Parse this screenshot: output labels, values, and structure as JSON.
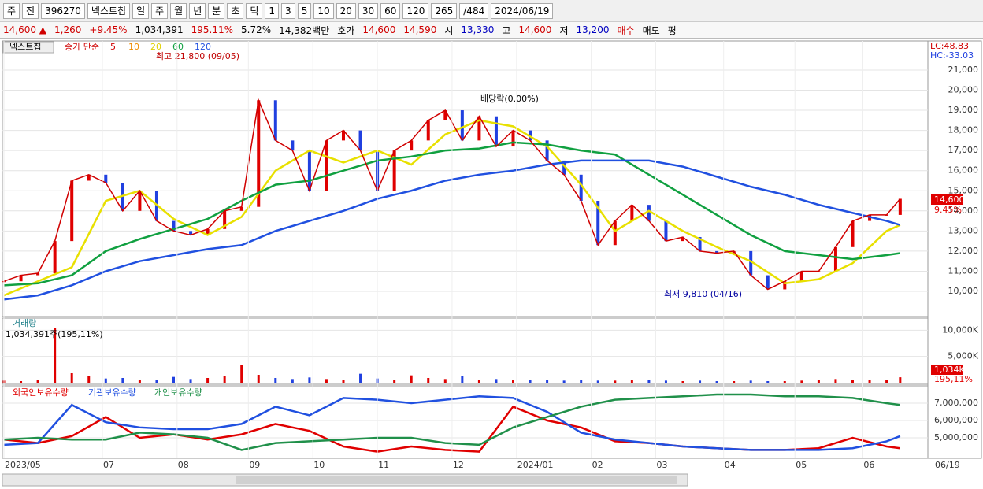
{
  "toolbar": [
    "주",
    "전",
    "396270",
    "넥스트칩",
    "일",
    "주",
    "월",
    "년",
    "분",
    "초",
    "틱",
    "1",
    "3",
    "5",
    "10",
    "20",
    "30",
    "60",
    "120",
    "265",
    "/484",
    "2024/06/19"
  ],
  "infobar": [
    {
      "text": "14,600 ▲",
      "color": "#d00000"
    },
    {
      "text": "1,260",
      "color": "#d00000"
    },
    {
      "text": "+9.45%",
      "color": "#d00000"
    },
    {
      "text": "1,034,391",
      "color": "#000000"
    },
    {
      "text": "195.11%",
      "color": "#d00000"
    },
    {
      "text": "5.72%",
      "color": "#000000"
    },
    {
      "text": "14,382백만",
      "color": "#000000"
    },
    {
      "text": "호가",
      "color": "#000000"
    },
    {
      "text": "14,600",
      "color": "#d00000"
    },
    {
      "text": "14,590",
      "color": "#d00000"
    },
    {
      "text": "시",
      "color": "#000000"
    },
    {
      "text": "13,330",
      "color": "#0000c0"
    },
    {
      "text": "고",
      "color": "#000000"
    },
    {
      "text": "14,600",
      "color": "#d00000"
    },
    {
      "text": "저",
      "color": "#000000"
    },
    {
      "text": "13,200",
      "color": "#0000c0"
    },
    {
      "text": "매수",
      "color": "#d00000"
    },
    {
      "text": "매도",
      "color": "#000000"
    },
    {
      "text": "평",
      "color": "#000000"
    }
  ],
  "price": {
    "name": "넥스트칩",
    "legend_prefix": "종가 단순",
    "ma_labels": [
      {
        "text": "5",
        "color": "#d00000"
      },
      {
        "text": "10",
        "color": "#f08c00"
      },
      {
        "text": "20",
        "color": "#e0d000"
      },
      {
        "text": "60",
        "color": "#10a040"
      },
      {
        "text": "120",
        "color": "#2050e0"
      }
    ],
    "high_note": "최고 21,800 (09/05)",
    "dividend_note": "배당락(0.00%)",
    "low_note": "최저 9,810 (04/16)",
    "lc": "LC:48.83",
    "hc": "HC:-33.03",
    "last_label": "14,600",
    "last_pct": "9.45%",
    "ylim": [
      8826,
      22446
    ],
    "yticks": [
      {
        "value": 10000,
        "label": "10,000"
      },
      {
        "value": 11000,
        "label": "11,000"
      },
      {
        "value": 12000,
        "label": "12,000"
      },
      {
        "value": 13000,
        "label": "13,000"
      },
      {
        "value": 14000,
        "label": "14,000"
      },
      {
        "value": 15000,
        "label": "15,000"
      },
      {
        "value": 16000,
        "label": "16,000"
      },
      {
        "value": 17000,
        "label": "17,000"
      },
      {
        "value": 18000,
        "label": "18,000"
      },
      {
        "value": 19000,
        "label": "19,000"
      },
      {
        "value": 20000,
        "label": "20,000"
      },
      {
        "value": 21000,
        "label": "21,000"
      }
    ],
    "x": [
      0,
      5,
      10,
      15,
      20,
      25,
      30,
      35,
      40,
      45,
      50,
      55,
      60,
      65,
      70,
      75,
      80,
      85,
      90,
      95,
      100,
      105,
      110,
      115,
      120,
      125,
      130,
      135,
      140,
      145,
      150,
      155,
      160,
      165,
      170,
      175,
      180,
      185,
      190,
      195,
      200,
      205,
      210,
      215,
      220,
      225,
      230,
      235,
      240,
      245,
      250,
      255,
      260,
      264
    ],
    "close": [
      10500,
      10800,
      10900,
      12500,
      15500,
      15800,
      15400,
      14000,
      15000,
      13500,
      13000,
      12800,
      13100,
      14000,
      14200,
      19500,
      17500,
      17000,
      15000,
      17500,
      18000,
      17000,
      15000,
      17000,
      17500,
      18500,
      19000,
      17500,
      18700,
      17200,
      18000,
      17500,
      16500,
      15800,
      14500,
      12300,
      13500,
      14300,
      13500,
      12500,
      12700,
      12000,
      11900,
      12000,
      10800,
      10100,
      10500,
      11000,
      11000,
      12200,
      13500,
      13800,
      13800,
      14600
    ],
    "ma_x": [
      0,
      10,
      20,
      30,
      40,
      50,
      60,
      70,
      80,
      90,
      100,
      110,
      120,
      130,
      140,
      150,
      160,
      170,
      180,
      190,
      200,
      210,
      220,
      230,
      240,
      250,
      260,
      264
    ],
    "ma": [
      {
        "color": "#e8e000",
        "values": [
          9800,
          10500,
          11200,
          14500,
          15000,
          13600,
          12800,
          13700,
          16000,
          17000,
          16400,
          17000,
          16300,
          17800,
          18500,
          18200,
          17200,
          15300,
          13000,
          14000,
          13000,
          12200,
          11500,
          10400,
          10600,
          11400,
          13000,
          13300
        ]
      },
      {
        "color": "#10a040",
        "values": [
          10300,
          10400,
          10800,
          12000,
          12600,
          13100,
          13600,
          14500,
          15300,
          15500,
          16000,
          16500,
          16700,
          17000,
          17100,
          17400,
          17300,
          17000,
          16800,
          15800,
          14800,
          13800,
          12800,
          12000,
          11800,
          11600,
          11800,
          11900
        ]
      },
      {
        "color": "#2050e0",
        "values": [
          9600,
          9800,
          10300,
          11000,
          11500,
          11800,
          12100,
          12300,
          13000,
          13500,
          14000,
          14600,
          15000,
          15500,
          15800,
          16000,
          16300,
          16500,
          16500,
          16500,
          16200,
          15700,
          15200,
          14800,
          14300,
          13900,
          13500,
          13300
        ]
      }
    ]
  },
  "volume": {
    "title": "거래량",
    "summary": "1,034,391주(195,11%)",
    "ylim": [
      0,
      12300
    ],
    "yticks": [
      {
        "value": 5000,
        "label": "5,000K"
      },
      {
        "value": 10000,
        "label": "10,000K"
      }
    ],
    "last_label": "1,034K",
    "last_pct": "195,11%",
    "values": [
      400,
      300,
      500,
      10500,
      1800,
      1200,
      800,
      900,
      600,
      500,
      1100,
      700,
      900,
      1200,
      3300,
      1500,
      900,
      700,
      1000,
      700,
      600,
      1700,
      800,
      600,
      1400,
      900,
      700,
      1200,
      600,
      700,
      600,
      500,
      500,
      400,
      500,
      400,
      400,
      600,
      500,
      400,
      300,
      400,
      300,
      300,
      400,
      300,
      300,
      400,
      500,
      700,
      600,
      500,
      500,
      1034
    ]
  },
  "holdings": {
    "ylim": [
      3910000,
      8000000
    ],
    "yticks": [
      {
        "value": 5000000,
        "label": "5,000,000"
      },
      {
        "value": 6000000,
        "label": "6,000,000"
      },
      {
        "value": 7000000,
        "label": "7,000,000"
      }
    ],
    "series": [
      {
        "name": "외국인보유수량",
        "color": "#e00000",
        "values": [
          4900000,
          4700000,
          5100000,
          6200000,
          5000000,
          5200000,
          4900000,
          5200000,
          5800000,
          5400000,
          4500000,
          4200000,
          4500000,
          4300000,
          4200000,
          6800000,
          6000000,
          5600000,
          4800000,
          4700000,
          4500000,
          4400000,
          4300000,
          4300000,
          4400000,
          5000000,
          4500000,
          4400000
        ]
      },
      {
        "name": "기관보유수량",
        "color": "#2050e0",
        "values": [
          4600000,
          4700000,
          6900000,
          5900000,
          5600000,
          5500000,
          5500000,
          5800000,
          6800000,
          6300000,
          7300000,
          7200000,
          7000000,
          7200000,
          7400000,
          7300000,
          6500000,
          5300000,
          4900000,
          4700000,
          4500000,
          4400000,
          4300000,
          4300000,
          4300000,
          4400000,
          4800000,
          5100000
        ]
      },
      {
        "name": "개인보유수량",
        "color": "#20904a",
        "values": [
          4900000,
          5000000,
          4900000,
          4900000,
          5300000,
          5200000,
          5000000,
          4300000,
          4700000,
          4800000,
          4900000,
          5000000,
          5000000,
          4700000,
          4600000,
          5600000,
          6200000,
          6800000,
          7200000,
          7300000,
          7400000,
          7500000,
          7500000,
          7400000,
          7400000,
          7300000,
          7000000,
          6900000
        ]
      }
    ]
  },
  "xticks": [
    {
      "value": 0,
      "label": "2023/05"
    },
    {
      "value": 29,
      "label": "07"
    },
    {
      "value": 51,
      "label": "08"
    },
    {
      "value": 72,
      "label": "09"
    },
    {
      "value": 91,
      "label": "10"
    },
    {
      "value": 110,
      "label": "11"
    },
    {
      "value": 132,
      "label": "12"
    },
    {
      "value": 151,
      "label": "2024/01"
    },
    {
      "value": 173,
      "label": "02"
    },
    {
      "value": 192,
      "label": "03"
    },
    {
      "value": 212,
      "label": "04"
    },
    {
      "value": 233,
      "label": "05"
    },
    {
      "value": 253,
      "label": "06"
    }
  ],
  "last_date": "06/19"
}
